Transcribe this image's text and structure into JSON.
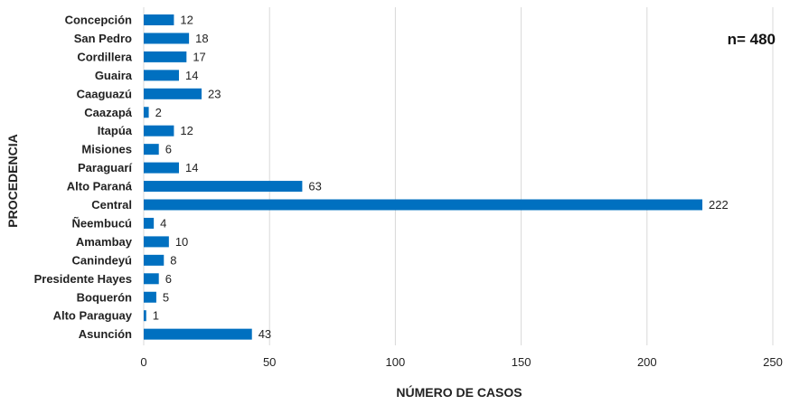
{
  "chart_data": {
    "type": "bar",
    "orientation": "horizontal",
    "xlabel": "NÚMERO DE CASOS",
    "ylabel": "PROCEDENCIA",
    "annotation": "n= 480",
    "xlim": [
      0,
      250
    ],
    "xticks": [
      0,
      50,
      100,
      150,
      200,
      250
    ],
    "grid": "vertical",
    "bar_color": "#0070C0",
    "categories": [
      "Concepción",
      "San Pedro",
      "Cordillera",
      "Guaira",
      "Caaguazú",
      "Caazapá",
      "Itapúa",
      "Misiones",
      "Paraguarí",
      "Alto Paraná",
      "Central",
      "Ñeembucú",
      "Amambay",
      "Canindeyú",
      "Presidente Hayes",
      "Boquerón",
      "Alto Paraguay",
      "Asunción"
    ],
    "values": [
      12,
      18,
      17,
      14,
      23,
      2,
      12,
      6,
      14,
      63,
      222,
      4,
      10,
      8,
      6,
      5,
      1,
      43
    ]
  }
}
